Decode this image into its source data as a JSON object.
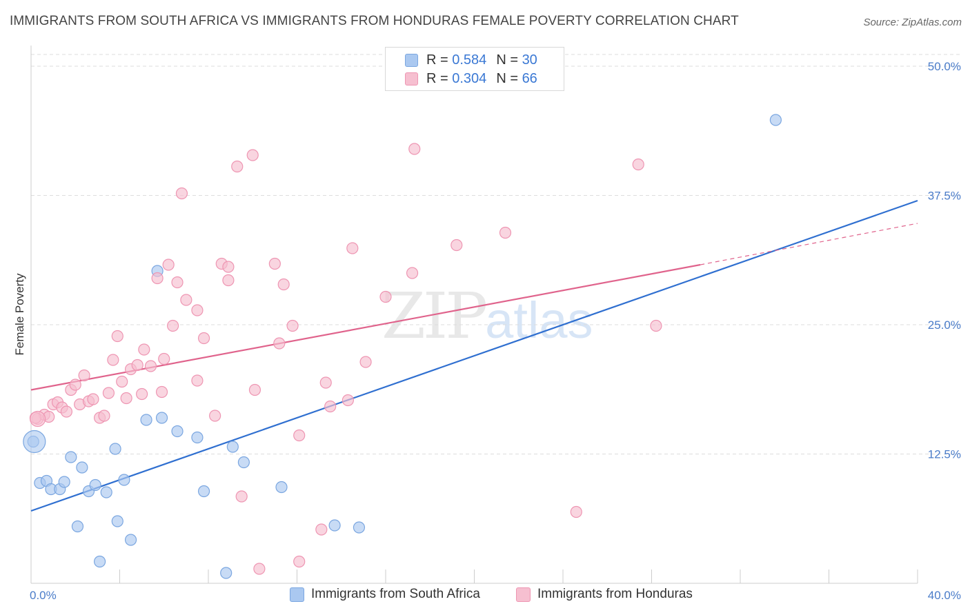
{
  "header": {
    "title": "IMMIGRANTS FROM SOUTH AFRICA VS IMMIGRANTS FROM HONDURAS FEMALE POVERTY CORRELATION CHART",
    "source": "Source: ZipAtlas.com"
  },
  "watermark": {
    "part1": "ZIP",
    "part2": "atlas"
  },
  "legend_top": {
    "rows": [
      {
        "r_label": "R =",
        "r_value": "0.584",
        "n_label": "N =",
        "n_value": "30"
      },
      {
        "r_label": "R =",
        "r_value": "0.304",
        "n_label": "N =",
        "n_value": "66"
      }
    ]
  },
  "legend_bottom": {
    "items": [
      {
        "label": "Immigrants from South Africa"
      },
      {
        "label": "Immigrants from Honduras"
      }
    ]
  },
  "colors": {
    "blue_fill": "#aac8f0",
    "blue_stroke": "#7aa6e0",
    "blue_line": "#2f6fd0",
    "pink_fill": "#f6bfd0",
    "pink_stroke": "#ee95b2",
    "pink_line": "#e0638c",
    "grid": "#dddddd",
    "axis_text": "#4a7cc9"
  },
  "chart_data": {
    "type": "scatter",
    "title": "IMMIGRANTS FROM SOUTH AFRICA VS IMMIGRANTS FROM HONDURAS FEMALE POVERTY CORRELATION CHART",
    "xlabel": "",
    "ylabel": "Female Poverty",
    "xlim": [
      0,
      40
    ],
    "ylim": [
      0,
      52
    ],
    "x_tick_labels": [
      "0.0%",
      "40.0%"
    ],
    "y_ticks": [
      12.5,
      25.0,
      37.5,
      50.0
    ],
    "y_tick_labels": [
      "12.5%",
      "25.0%",
      "37.5%",
      "50.0%"
    ],
    "grid": true,
    "legend_position": "bottom",
    "series": [
      {
        "name": "Immigrants from South Africa",
        "color": "#7aa6e0",
        "points": [
          [
            0.1,
            13.7
          ],
          [
            0.4,
            9.7
          ],
          [
            0.7,
            9.9
          ],
          [
            0.9,
            9.1
          ],
          [
            1.3,
            9.1
          ],
          [
            1.5,
            9.8
          ],
          [
            1.8,
            12.2
          ],
          [
            2.1,
            5.5
          ],
          [
            2.3,
            11.2
          ],
          [
            2.6,
            8.9
          ],
          [
            2.9,
            9.5
          ],
          [
            3.1,
            2.1
          ],
          [
            3.4,
            8.8
          ],
          [
            3.8,
            13.0
          ],
          [
            3.9,
            6.0
          ],
          [
            4.2,
            10.0
          ],
          [
            4.5,
            4.2
          ],
          [
            5.2,
            15.8
          ],
          [
            5.7,
            30.2
          ],
          [
            5.9,
            16.0
          ],
          [
            6.6,
            14.7
          ],
          [
            7.5,
            14.1
          ],
          [
            7.8,
            8.9
          ],
          [
            8.8,
            1.0
          ],
          [
            9.1,
            13.2
          ],
          [
            9.6,
            11.7
          ],
          [
            11.3,
            9.3
          ],
          [
            13.7,
            5.6
          ],
          [
            14.8,
            5.4
          ],
          [
            33.6,
            44.8
          ]
        ],
        "trendline": {
          "x": [
            0,
            40
          ],
          "y": [
            7.0,
            37.0
          ]
        }
      },
      {
        "name": "Immigrants from Honduras",
        "color": "#ee95b2",
        "points": [
          [
            0.3,
            15.9
          ],
          [
            0.6,
            16.3
          ],
          [
            0.8,
            16.1
          ],
          [
            1.0,
            17.3
          ],
          [
            1.2,
            17.5
          ],
          [
            1.4,
            17.0
          ],
          [
            1.6,
            16.6
          ],
          [
            1.8,
            18.7
          ],
          [
            2.0,
            19.2
          ],
          [
            2.2,
            17.3
          ],
          [
            2.4,
            20.1
          ],
          [
            2.6,
            17.6
          ],
          [
            2.8,
            17.8
          ],
          [
            3.1,
            16.0
          ],
          [
            3.3,
            16.2
          ],
          [
            3.5,
            18.4
          ],
          [
            3.7,
            21.6
          ],
          [
            3.9,
            23.9
          ],
          [
            4.1,
            19.5
          ],
          [
            4.3,
            17.9
          ],
          [
            4.5,
            20.7
          ],
          [
            4.8,
            21.1
          ],
          [
            5.0,
            18.3
          ],
          [
            5.1,
            22.6
          ],
          [
            5.4,
            21.0
          ],
          [
            5.7,
            29.5
          ],
          [
            5.9,
            18.5
          ],
          [
            6.0,
            21.7
          ],
          [
            6.2,
            30.8
          ],
          [
            6.4,
            24.9
          ],
          [
            6.6,
            29.1
          ],
          [
            6.8,
            37.7
          ],
          [
            7.0,
            27.4
          ],
          [
            7.5,
            26.4
          ],
          [
            7.5,
            19.6
          ],
          [
            7.8,
            23.7
          ],
          [
            8.3,
            16.2
          ],
          [
            8.6,
            30.9
          ],
          [
            8.9,
            29.3
          ],
          [
            8.9,
            30.6
          ],
          [
            9.3,
            40.3
          ],
          [
            9.5,
            8.4
          ],
          [
            10.0,
            41.4
          ],
          [
            10.1,
            18.7
          ],
          [
            10.3,
            1.4
          ],
          [
            11.0,
            30.9
          ],
          [
            11.2,
            23.2
          ],
          [
            11.4,
            28.9
          ],
          [
            11.8,
            24.9
          ],
          [
            12.1,
            14.3
          ],
          [
            12.1,
            2.1
          ],
          [
            13.1,
            5.2
          ],
          [
            13.3,
            19.4
          ],
          [
            13.5,
            17.1
          ],
          [
            14.3,
            17.7
          ],
          [
            14.5,
            32.4
          ],
          [
            15.1,
            21.4
          ],
          [
            16.0,
            27.7
          ],
          [
            17.2,
            30.0
          ],
          [
            17.3,
            42.0
          ],
          [
            19.2,
            32.7
          ],
          [
            21.4,
            33.9
          ],
          [
            24.6,
            6.9
          ],
          [
            27.4,
            40.5
          ],
          [
            28.2,
            24.9
          ],
          [
            0.2,
            16.0
          ]
        ],
        "trendline": {
          "x": [
            0,
            30.2
          ],
          "y": [
            18.7,
            30.8
          ]
        },
        "trendline_dashed": {
          "x": [
            30.2,
            40
          ],
          "y": [
            30.8,
            34.8
          ]
        }
      }
    ]
  }
}
